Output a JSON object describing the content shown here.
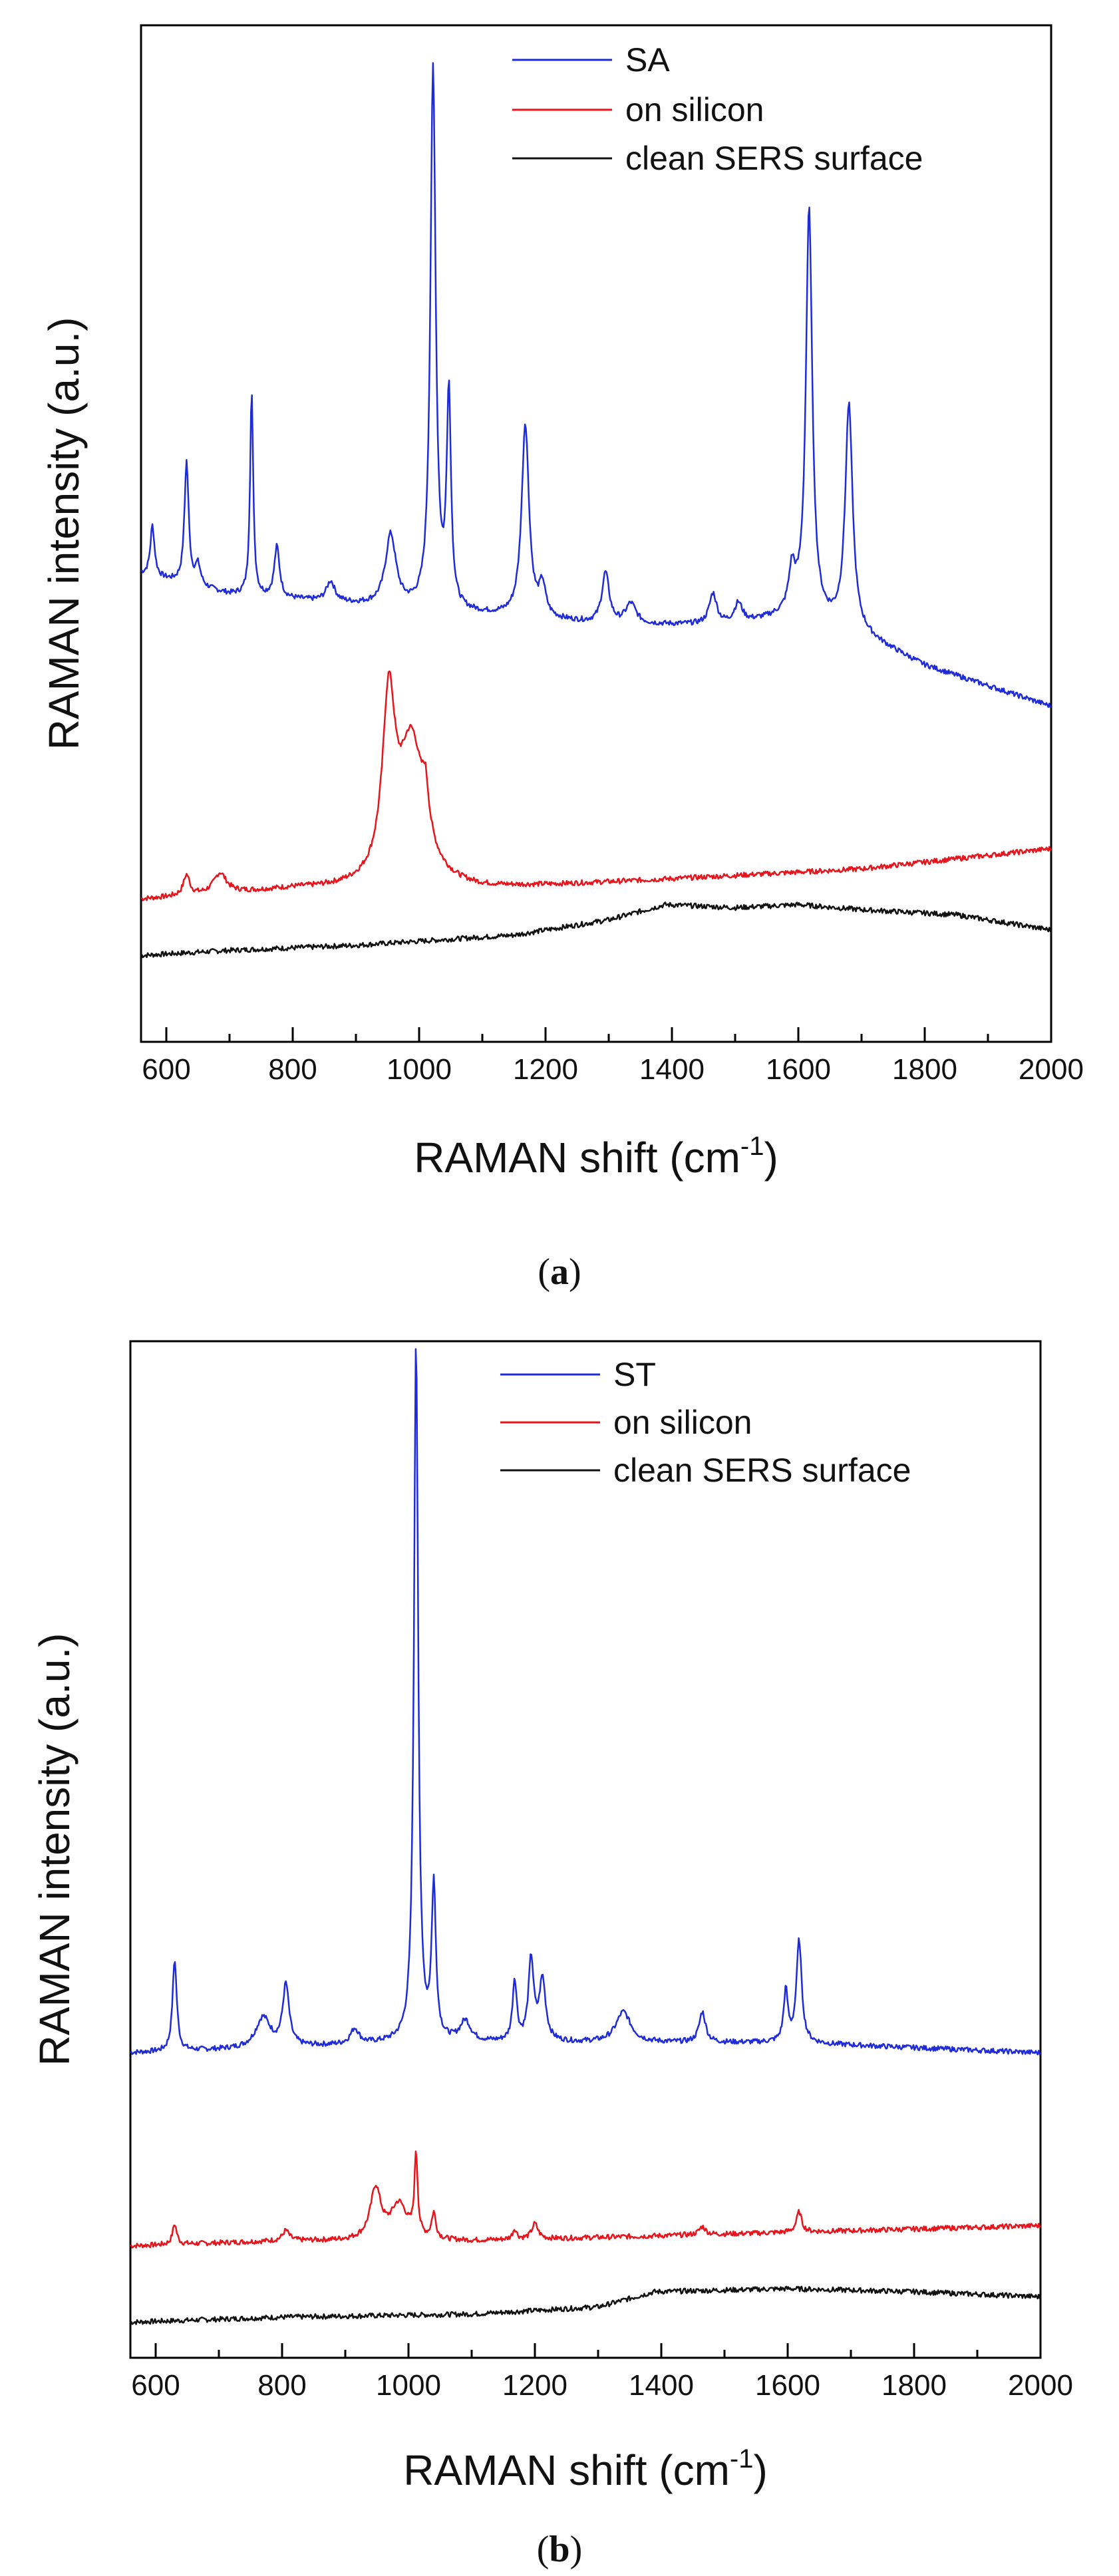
{
  "chart_data": [
    {
      "type": "line",
      "panel_label": "a",
      "xlabel": "RAMAN shift (cm",
      "xlabel_superscript": "-1",
      "xlabel_suffix": ")",
      "ylabel": "RAMAN intensity (a.u.)",
      "xlim": [
        560,
        2000
      ],
      "ylim": [
        0,
        100
      ],
      "x_ticks": [
        600,
        800,
        1000,
        1200,
        1400,
        1600,
        1800,
        2000
      ],
      "legend": [
        "SA",
        "on silicon",
        "clean SERS surface"
      ],
      "series": [
        {
          "name": "SA",
          "color": "#1f2bd9",
          "baseline": [
            [
              560,
              46
            ],
            [
              700,
              44
            ],
            [
              900,
              43
            ],
            [
              1100,
              42
            ],
            [
              1300,
              41
            ],
            [
              1500,
              41
            ],
            [
              1600,
              42
            ],
            [
              1700,
              40
            ],
            [
              1800,
              37
            ],
            [
              2000,
              33
            ]
          ],
          "peaks": [
            [
              578,
              5,
              4
            ],
            [
              632,
              12,
              4
            ],
            [
              650,
              2,
              5
            ],
            [
              735,
              20,
              3
            ],
            [
              775,
              5,
              5
            ],
            [
              860,
              2,
              8
            ],
            [
              955,
              7,
              10
            ],
            [
              1022,
              53,
              5
            ],
            [
              1047,
              21,
              4
            ],
            [
              1168,
              19,
              7
            ],
            [
              1195,
              3,
              6
            ],
            [
              1295,
              5,
              7
            ],
            [
              1335,
              2,
              10
            ],
            [
              1465,
              3,
              7
            ],
            [
              1505,
              2,
              8
            ],
            [
              1590,
              4,
              6
            ],
            [
              1617,
              40,
              6
            ],
            [
              1680,
              22,
              7
            ]
          ]
        },
        {
          "name": "on silicon",
          "color": "#e8141c",
          "baseline": [
            [
              560,
              14
            ],
            [
              800,
              15
            ],
            [
              1100,
              15
            ],
            [
              1400,
              16
            ],
            [
              1700,
              17
            ],
            [
              2000,
              19
            ]
          ],
          "peaks": [
            [
              632,
              2,
              6
            ],
            [
              685,
              2,
              12
            ],
            [
              952,
              17,
              12
            ],
            [
              988,
              14,
              24
            ],
            [
              1010,
              4,
              6
            ]
          ]
        },
        {
          "name": "clean SERS surface",
          "color": "#111111",
          "baseline": [
            [
              560,
              8.5
            ],
            [
              700,
              9
            ],
            [
              900,
              9.5
            ],
            [
              1150,
              10.5
            ],
            [
              1300,
              12
            ],
            [
              1390,
              13.5
            ],
            [
              1500,
              13.2
            ],
            [
              1600,
              13.5
            ],
            [
              1700,
              13
            ],
            [
              1850,
              12.5
            ],
            [
              2000,
              11
            ]
          ],
          "peaks": []
        }
      ]
    },
    {
      "type": "line",
      "panel_label": "b",
      "xlabel": "RAMAN shift (cm",
      "xlabel_superscript": "-1",
      "xlabel_suffix": ")",
      "ylabel": "RAMAN intensity (a.u.)",
      "xlim": [
        560,
        2000
      ],
      "ylim": [
        0,
        100
      ],
      "x_ticks": [
        600,
        800,
        1000,
        1200,
        1400,
        1600,
        1800,
        2000
      ],
      "legend": [
        "ST",
        "on silicon",
        "clean SERS surface"
      ],
      "series": [
        {
          "name": "ST",
          "color": "#1f2bd9",
          "baseline": [
            [
              560,
              30
            ],
            [
              800,
              30.5
            ],
            [
              1000,
              31
            ],
            [
              1300,
              31
            ],
            [
              1600,
              31
            ],
            [
              2000,
              30
            ]
          ],
          "peaks": [
            [
              630,
              9,
              4
            ],
            [
              770,
              3,
              14
            ],
            [
              806,
              6,
              6
            ],
            [
              915,
              1.5,
              8
            ],
            [
              1012,
              69,
              4
            ],
            [
              1040,
              15,
              4
            ],
            [
              1090,
              2,
              10
            ],
            [
              1168,
              6,
              4
            ],
            [
              1194,
              8,
              5
            ],
            [
              1212,
              6,
              6
            ],
            [
              1340,
              3,
              14
            ],
            [
              1465,
              3,
              6
            ],
            [
              1597,
              5,
              4
            ],
            [
              1618,
              10,
              5
            ]
          ]
        },
        {
          "name": "on silicon",
          "color": "#e8141c",
          "baseline": [
            [
              560,
              11
            ],
            [
              800,
              11.5
            ],
            [
              1100,
              11.5
            ],
            [
              1400,
              12
            ],
            [
              1700,
              12.5
            ],
            [
              2000,
              13
            ]
          ],
          "peaks": [
            [
              630,
              2,
              4
            ],
            [
              806,
              1,
              6
            ],
            [
              948,
              5,
              10
            ],
            [
              985,
              3.5,
              16
            ],
            [
              1012,
              8,
              3
            ],
            [
              1040,
              2.5,
              4
            ],
            [
              1168,
              1,
              4
            ],
            [
              1200,
              1.5,
              6
            ],
            [
              1465,
              0.8,
              6
            ],
            [
              1618,
              2,
              5
            ]
          ]
        },
        {
          "name": "clean SERS surface",
          "color": "#111111",
          "baseline": [
            [
              560,
              3.5
            ],
            [
              800,
              4
            ],
            [
              1100,
              4.3
            ],
            [
              1300,
              5
            ],
            [
              1390,
              6.5
            ],
            [
              1600,
              6.8
            ],
            [
              1800,
              6.5
            ],
            [
              2000,
              6
            ]
          ],
          "peaks": []
        }
      ]
    }
  ]
}
